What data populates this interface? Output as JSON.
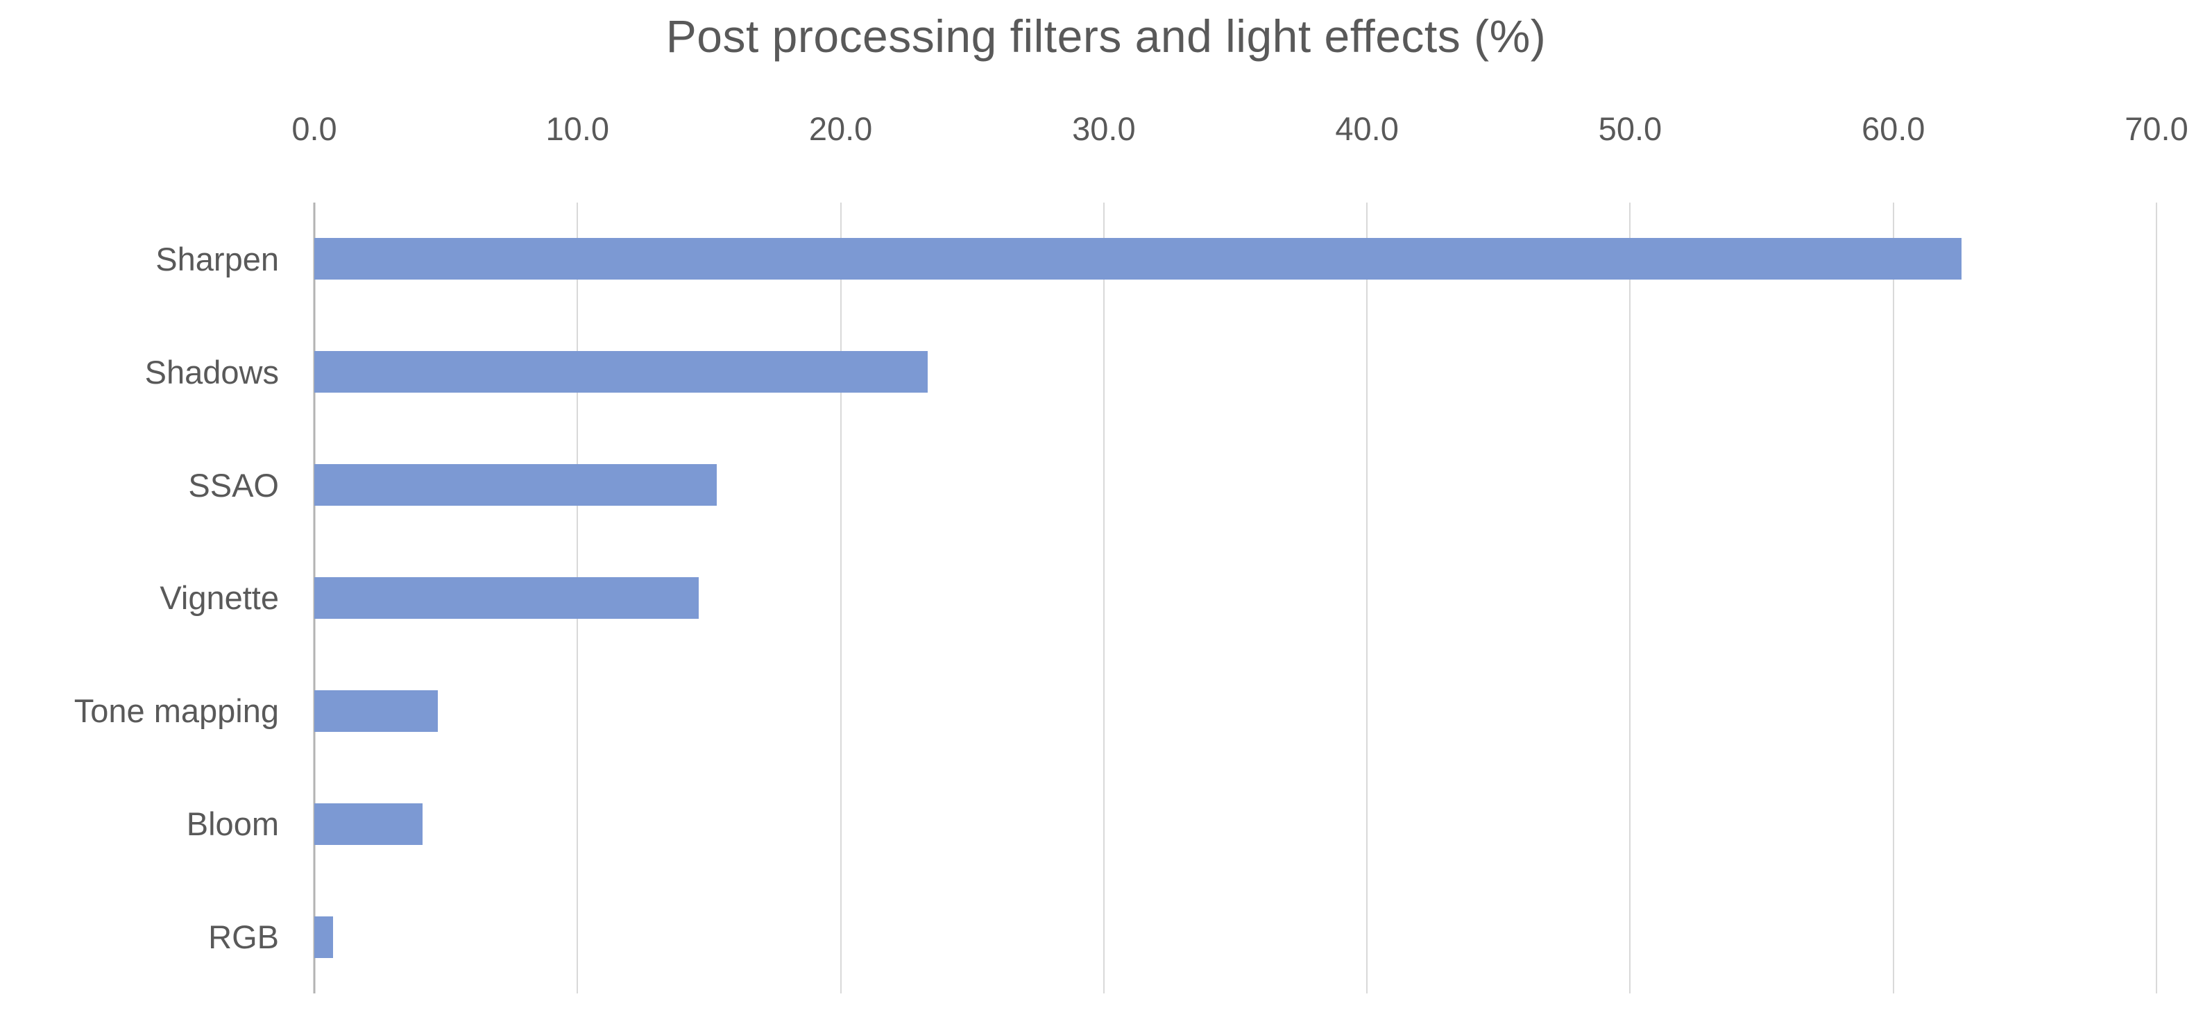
{
  "chart_data": {
    "type": "bar",
    "orientation": "horizontal",
    "title": "Post processing filters and light effects (%)",
    "categories": [
      "Sharpen",
      "Shadows",
      "SSAO",
      "Vignette",
      "Tone mapping",
      "Bloom",
      "RGB"
    ],
    "values": [
      62.6,
      23.3,
      15.3,
      14.6,
      4.7,
      4.1,
      0.7
    ],
    "xlabel": "",
    "ylabel": "",
    "xlim": [
      0,
      70
    ],
    "xticklabels": [
      "0.0",
      "10.0",
      "20.0",
      "30.0",
      "40.0",
      "50.0",
      "60.0",
      "70.0"
    ],
    "axis_labels_position": "top",
    "grid": "vertical",
    "legend": "none",
    "colors": {
      "bar_fill": "#7C99D3",
      "gridline": "#D9D9D9",
      "axis_line": "#B3B3B3",
      "text": "#595959",
      "background": "#FFFFFF"
    }
  }
}
